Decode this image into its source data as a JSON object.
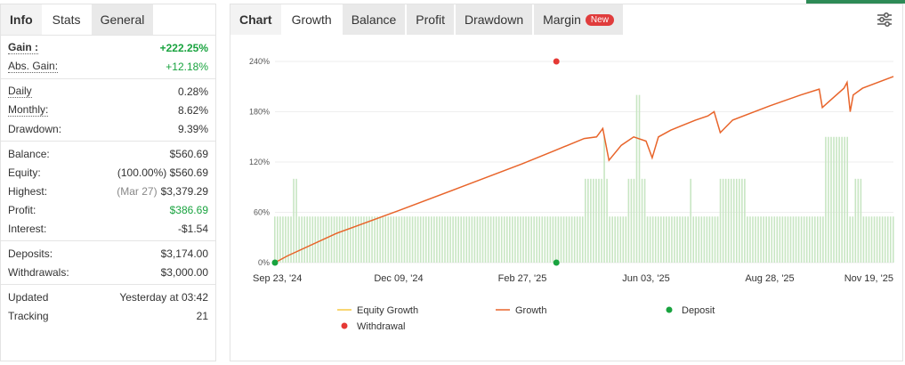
{
  "left_tabs": [
    "Info",
    "Stats",
    "General"
  ],
  "stats": {
    "gain": {
      "label": "Gain :",
      "value": "+222.25%"
    },
    "abs_gain": {
      "label": "Abs. Gain:",
      "value": "+12.18%"
    },
    "daily": {
      "label": "Daily",
      "value": "0.28%"
    },
    "monthly": {
      "label": "Monthly:",
      "value": "8.62%"
    },
    "drawdown": {
      "label": "Drawdown:",
      "value": "9.39%"
    },
    "balance": {
      "label": "Balance:",
      "value": "$560.69"
    },
    "equity": {
      "label": "Equity:",
      "pct": "(100.00%)",
      "value": "$560.69"
    },
    "highest": {
      "label": "Highest:",
      "date": "(Mar 27)",
      "value": "$3,379.29"
    },
    "profit": {
      "label": "Profit:",
      "value": "$386.69"
    },
    "interest": {
      "label": "Interest:",
      "value": "-$1.54"
    },
    "deposits": {
      "label": "Deposits:",
      "value": "$3,174.00"
    },
    "withdrawals": {
      "label": "Withdrawals:",
      "value": "$3,000.00"
    },
    "updated": {
      "label": "Updated",
      "value": "Yesterday at 03:42"
    },
    "tracking": {
      "label": "Tracking",
      "value": "21"
    }
  },
  "chart_tabs": [
    "Chart",
    "Growth",
    "Balance",
    "Profit",
    "Drawdown",
    "Margin"
  ],
  "margin_badge": "New",
  "colors": {
    "growth": "#e8642a",
    "bars": "#c8e6c3",
    "deposit": "#19a33f",
    "withdrawal": "#e53935",
    "equity": "#f5c842",
    "accent": "#2e8b57"
  },
  "legend": [
    "Equity Growth",
    "Growth",
    "Deposit",
    "Withdrawal"
  ],
  "chart_data": {
    "type": "line",
    "x_ticks": [
      "Sep 23, '24",
      "Dec 09, '24",
      "Feb 27, '25",
      "Jun 03, '25",
      "Aug 28, '25",
      "Nov 19, '25"
    ],
    "y_ticks": [
      "0%",
      "60%",
      "120%",
      "180%",
      "240%"
    ],
    "ylim": [
      0,
      240
    ],
    "series": [
      {
        "name": "Growth",
        "x": [
          0,
          0.02,
          0.1,
          0.2,
          0.3,
          0.4,
          0.45,
          0.5,
          0.52,
          0.53,
          0.54,
          0.56,
          0.58,
          0.6,
          0.61,
          0.62,
          0.64,
          0.68,
          0.7,
          0.71,
          0.72,
          0.74,
          0.8,
          0.85,
          0.88,
          0.885,
          0.9,
          0.92,
          0.925,
          0.93,
          0.935,
          0.95,
          1.0
        ],
        "values": [
          0,
          8,
          35,
          62,
          90,
          118,
          133,
          148,
          150,
          160,
          122,
          140,
          150,
          145,
          125,
          150,
          158,
          170,
          175,
          180,
          155,
          170,
          187,
          200,
          207,
          185,
          195,
          208,
          215,
          180,
          200,
          208,
          222
        ]
      }
    ],
    "deposit_markers": [
      {
        "x": 0,
        "y": 0
      },
      {
        "x": 0.455,
        "y": 0
      }
    ],
    "withdrawal_markers": [
      {
        "x": 0.455,
        "y": 240
      }
    ]
  }
}
